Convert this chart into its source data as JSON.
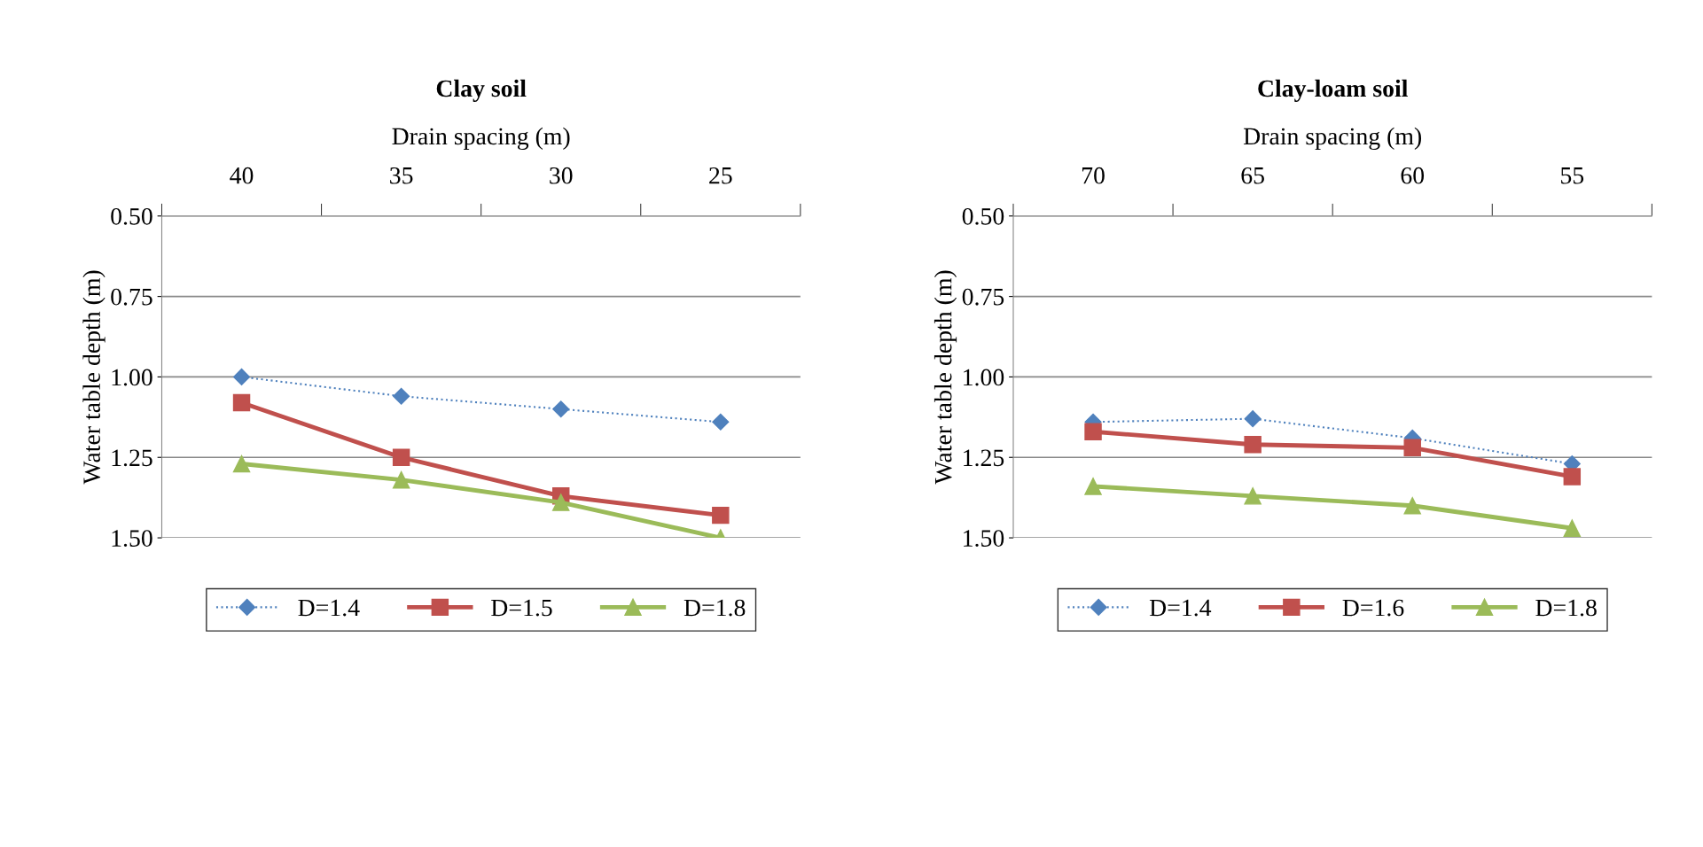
{
  "chart_data": [
    {
      "type": "line",
      "title": "Clay soil",
      "xlabel": "Drain spacing (m)",
      "ylabel": "Water table depth (m)",
      "categories": [
        "40",
        "35",
        "30",
        "25"
      ],
      "series": [
        {
          "name": "D=1.4",
          "color": "#4f81bd",
          "marker": "diamond",
          "line_style": "dotted",
          "values": [
            1.0,
            1.06,
            1.1,
            1.14
          ]
        },
        {
          "name": "D=1.5",
          "color": "#c0504d",
          "marker": "square",
          "line_style": "solid",
          "values": [
            1.08,
            1.25,
            1.37,
            1.43
          ]
        },
        {
          "name": "D=1.8",
          "color": "#9bbb59",
          "marker": "triangle",
          "line_style": "solid",
          "values": [
            1.27,
            1.32,
            1.39,
            1.5
          ]
        }
      ],
      "ylim": [
        1.5,
        0.5
      ],
      "yticks": [
        {
          "value": 0.5,
          "label": "0.50"
        },
        {
          "value": 0.75,
          "label": "0.75"
        },
        {
          "value": 1.0,
          "label": "1.00"
        },
        {
          "value": 1.25,
          "label": "1.25"
        },
        {
          "value": 1.5,
          "label": "1.50"
        }
      ],
      "grid": "y",
      "legend": "bottom"
    },
    {
      "type": "line",
      "title": "Clay-loam soil",
      "xlabel": "Drain spacing (m)",
      "ylabel": "Water table depth (m)",
      "categories": [
        "70",
        "65",
        "60",
        "55"
      ],
      "series": [
        {
          "name": "D=1.4",
          "color": "#4f81bd",
          "marker": "diamond",
          "line_style": "dotted",
          "values": [
            1.14,
            1.13,
            1.19,
            1.27
          ]
        },
        {
          "name": "D=1.6",
          "color": "#c0504d",
          "marker": "square",
          "line_style": "solid",
          "values": [
            1.17,
            1.21,
            1.22,
            1.31
          ]
        },
        {
          "name": "D=1.8",
          "color": "#9bbb59",
          "marker": "triangle",
          "line_style": "solid",
          "values": [
            1.34,
            1.37,
            1.4,
            1.47
          ]
        }
      ],
      "ylim": [
        1.5,
        0.5
      ],
      "yticks": [
        {
          "value": 0.5,
          "label": "0.50"
        },
        {
          "value": 0.75,
          "label": "0.75"
        },
        {
          "value": 1.0,
          "label": "1.00"
        },
        {
          "value": 1.25,
          "label": "1.25"
        },
        {
          "value": 1.5,
          "label": "1.50"
        }
      ],
      "grid": "y",
      "legend": "bottom"
    }
  ]
}
